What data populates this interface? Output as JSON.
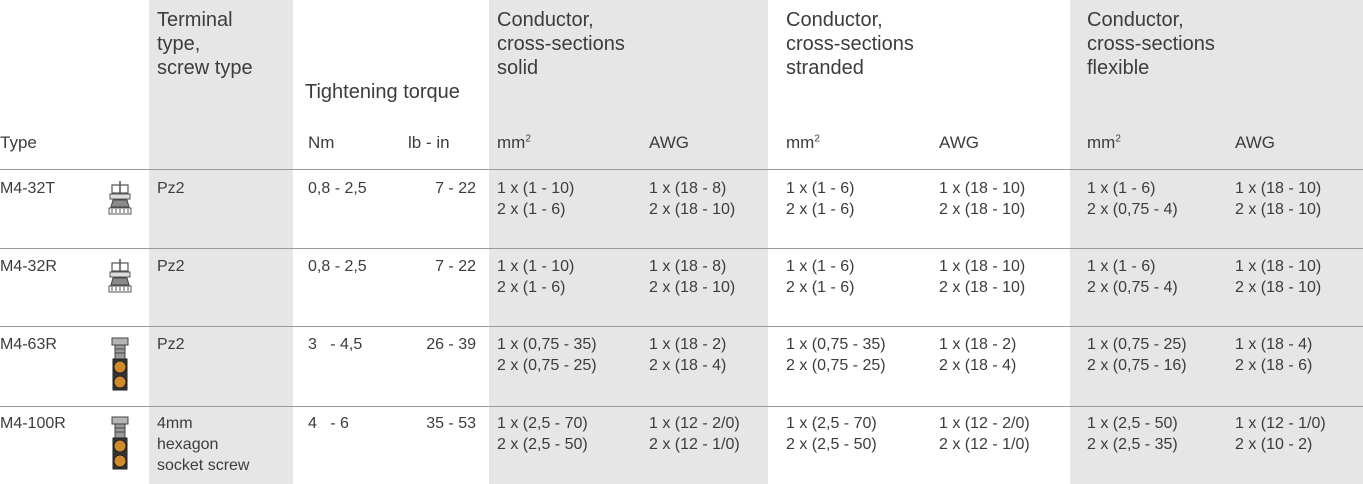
{
  "header": {
    "terminal": [
      "Terminal",
      "type,",
      "screw type"
    ],
    "torque": "Tightening torque",
    "solid": [
      "Conductor,",
      "cross-sections",
      "solid"
    ],
    "stranded": [
      "Conductor,",
      "cross-sections",
      "stranded"
    ],
    "flexible": [
      "Conductor,",
      "cross-sections",
      "flexible"
    ]
  },
  "subheader": {
    "type": "Type",
    "nm": "Nm",
    "lbin": "lb - in",
    "mm2": "mm",
    "mm2_sup": "2",
    "awg": "AWG"
  },
  "rows": [
    {
      "type": "M4-32T",
      "icon": "clamp-terminal-icon",
      "terminal": [
        "Pz2"
      ],
      "nm": "0,8 - 2,5",
      "lbin": "7 - 22",
      "solid_mm2": [
        "1 x (1 - 10)",
        "2 x (1 - 6)"
      ],
      "solid_awg": [
        "1 x (18 - 8)",
        "2 x (18 - 10)"
      ],
      "str_mm2": [
        "1 x (1 - 6)",
        "2 x (1 - 6)"
      ],
      "str_awg": [
        "1 x (18 - 10)",
        "2 x (18 - 10)"
      ],
      "flex_mm2": [
        "1 x (1 - 6)",
        "2 x (0,75 - 4)"
      ],
      "flex_awg": [
        "1 x (18 - 10)",
        "2 x (18 - 10)"
      ]
    },
    {
      "type": "M4-32R",
      "icon": "clamp-terminal-icon",
      "terminal": [
        "Pz2"
      ],
      "nm": "0,8 - 2,5",
      "lbin": "7 - 22",
      "solid_mm2": [
        "1 x (1 - 10)",
        "2 x (1 - 6)"
      ],
      "solid_awg": [
        "1 x (18 - 8)",
        "2 x (18 - 10)"
      ],
      "str_mm2": [
        "1 x (1 - 6)",
        "2 x (1 - 6)"
      ],
      "str_awg": [
        "1 x (18 - 10)",
        "2 x (18 - 10)"
      ],
      "flex_mm2": [
        "1 x (1 - 6)",
        "2 x (0,75 - 4)"
      ],
      "flex_awg": [
        "1 x (18 - 10)",
        "2 x (18 - 10)"
      ]
    },
    {
      "type": "M4-63R",
      "icon": "box-terminal-icon",
      "terminal": [
        "Pz2"
      ],
      "nm": "3   - 4,5",
      "lbin": "26 - 39",
      "solid_mm2": [
        "1 x (0,75 - 35)",
        "2 x (0,75 - 25)"
      ],
      "solid_awg": [
        "1 x (18 - 2)",
        "2 x (18 - 4)"
      ],
      "str_mm2": [
        "1 x (0,75 - 35)",
        "2 x (0,75 - 25)"
      ],
      "str_awg": [
        "1 x (18 - 2)",
        "2 x (18 - 4)"
      ],
      "flex_mm2": [
        "1 x (0,75 - 25)",
        "2 x (0,75 - 16)"
      ],
      "flex_awg": [
        "1 x (18 - 4)",
        "2 x (18 - 6)"
      ]
    },
    {
      "type": "M4-100R",
      "icon": "box-terminal-icon",
      "terminal": [
        "4mm",
        "hexagon",
        "socket screw"
      ],
      "nm": "4   - 6",
      "lbin": "35 - 53",
      "solid_mm2": [
        "1 x (2,5 - 70)",
        "2 x (2,5 - 50)"
      ],
      "solid_awg": [
        "1 x (12 - 2/0)",
        "2 x (12 - 1/0)"
      ],
      "str_mm2": [
        "1 x (2,5 - 70)",
        "2 x (2,5 - 50)"
      ],
      "str_awg": [
        "1 x (12 - 2/0)",
        "2 x (12 - 1/0)"
      ],
      "flex_mm2": [
        "1 x (2,5 - 50)",
        "2 x (2,5 - 35)"
      ],
      "flex_awg": [
        "1 x (12 - 1/0)",
        "2 x (10 - 2)"
      ]
    }
  ]
}
